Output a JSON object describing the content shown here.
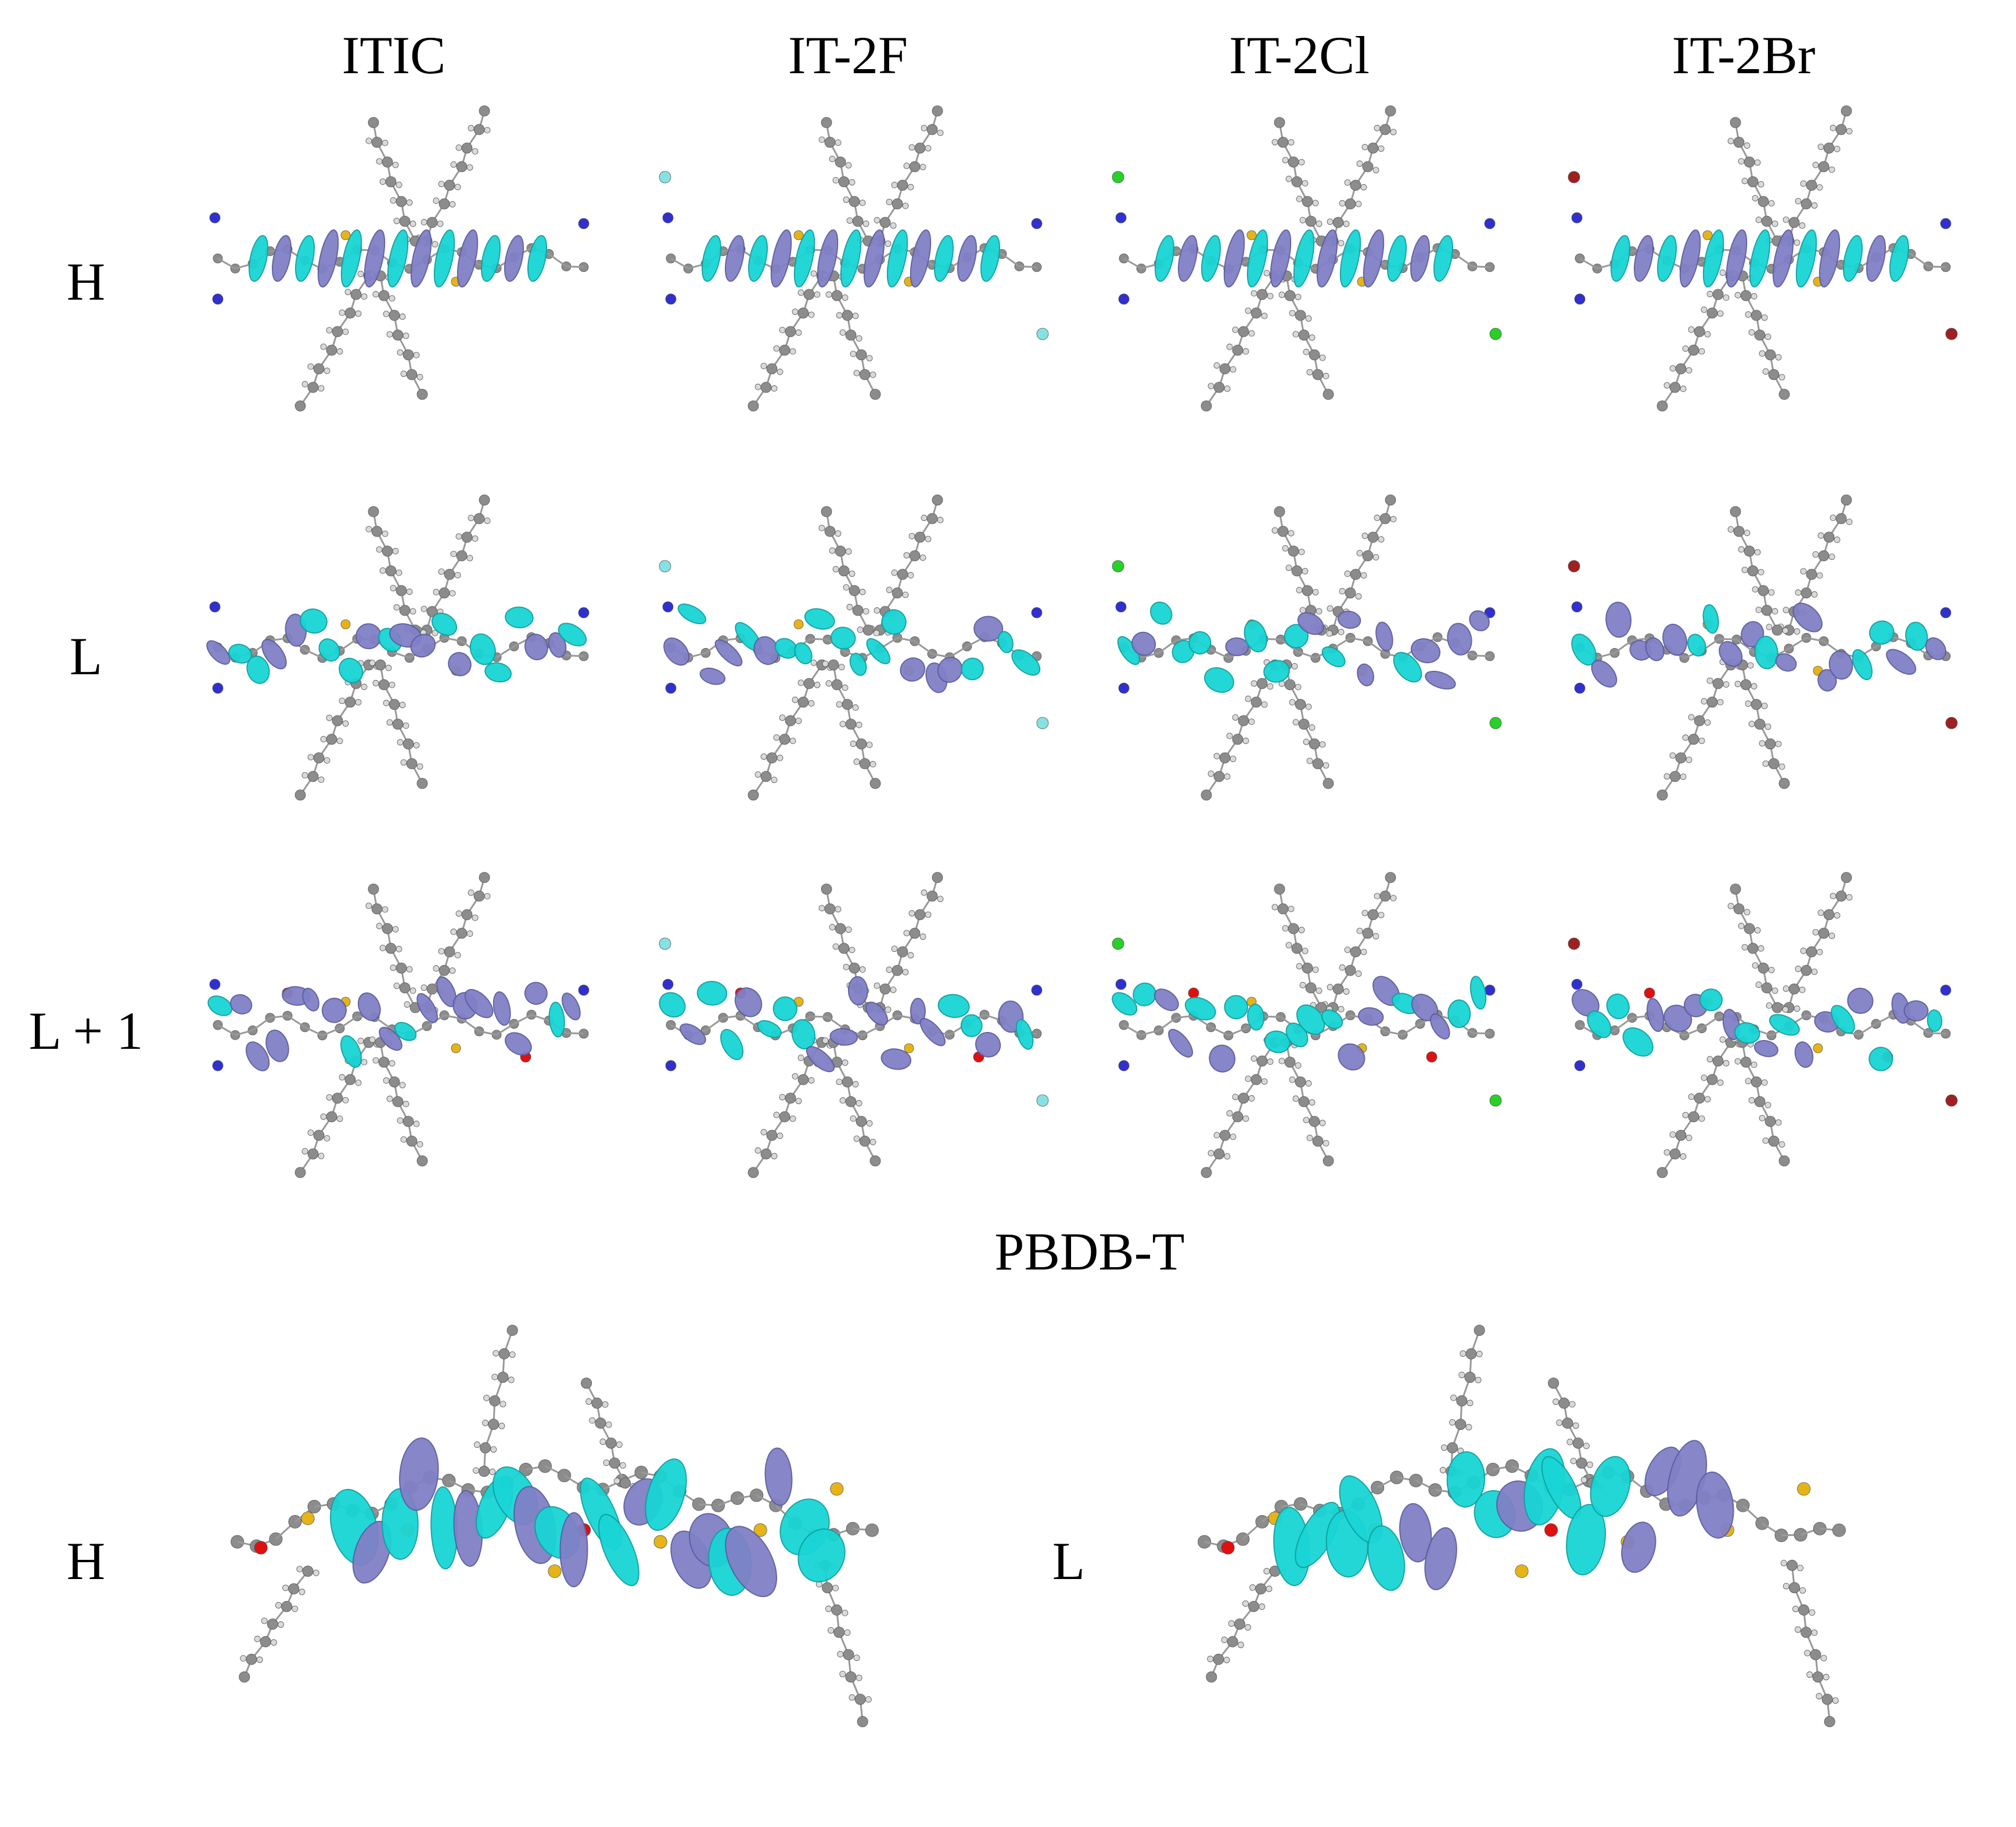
{
  "columns": [
    "ITIC",
    "IT-2F",
    "IT-2Cl",
    "IT-2Br"
  ],
  "rows": [
    "H",
    "L",
    "L + 1"
  ],
  "polymer": {
    "title": "PBDB-T",
    "panels": [
      "H",
      "L"
    ]
  },
  "colors": {
    "lobe_positive": "#19D5D5",
    "lobe_negative": "#8080C6",
    "carbon": "#8C8C8C",
    "hydrogen": "#D9D9D9",
    "sulfur": "#E6B417",
    "oxygen": "#E01010",
    "nitrogen": "#3030D0",
    "fluorine": "#86E2E2",
    "chlorine": "#28D028",
    "bromine": "#A02020"
  }
}
